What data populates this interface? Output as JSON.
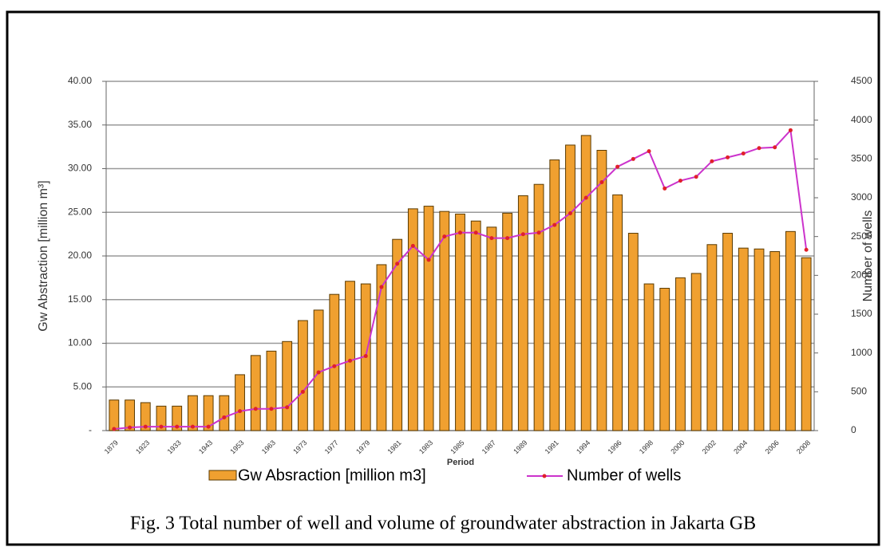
{
  "chart_data": {
    "type": "bar",
    "caption": "Fig. 3    Total number of well and volume of groundwater abstraction in Jakarta GB",
    "y_label": "Gw Abstraction [million m³]",
    "y2_label": "Number of wells",
    "x_label": "Period",
    "categories": [
      "1879",
      null,
      "1923",
      null,
      "1933",
      null,
      "1943",
      null,
      "1953",
      null,
      "1963",
      null,
      "1973",
      null,
      "1977",
      null,
      "1979",
      null,
      "1981",
      null,
      "1983",
      null,
      "1985",
      null,
      "1987",
      null,
      "1989",
      null,
      "1991",
      null,
      "1994",
      null,
      "1996",
      null,
      "1998",
      null,
      "2000",
      null,
      "2002",
      null,
      "2004",
      null,
      "2006",
      null,
      "2008"
    ],
    "series": [
      {
        "name": "Gw Absraction [million m3]",
        "type": "bar",
        "color": "#f0a030",
        "values": [
          3.5,
          3.5,
          3.2,
          2.8,
          2.8,
          4.0,
          4.0,
          4.0,
          6.4,
          8.6,
          9.1,
          10.2,
          12.6,
          13.8,
          15.6,
          17.1,
          16.8,
          19.0,
          21.9,
          25.4,
          25.7,
          25.1,
          24.8,
          24.0,
          23.3,
          24.9,
          26.9,
          28.2,
          31.0,
          32.7,
          33.8,
          32.1,
          27.0,
          22.6,
          16.8,
          16.3,
          17.5,
          18.0,
          21.3,
          22.6,
          20.9,
          20.8,
          20.5,
          22.8,
          19.8
        ]
      },
      {
        "name": "Number of wells",
        "type": "line",
        "axis": "y2",
        "color": "#cc33cc",
        "marker_color": "#e0202a",
        "values": [
          20,
          40,
          50,
          50,
          50,
          50,
          50,
          170,
          250,
          280,
          280,
          300,
          500,
          750,
          830,
          900,
          960,
          1850,
          2150,
          2380,
          2200,
          2500,
          2550,
          2550,
          2480,
          2480,
          2530,
          2550,
          2650,
          2800,
          3000,
          3200,
          3400,
          3500,
          3600,
          3120,
          3220,
          3270,
          3470,
          3520,
          3570,
          3640,
          3650,
          3870,
          2330
        ]
      }
    ],
    "ylim": [
      0,
      40
    ],
    "yticks": [
      {
        "value": 0,
        "label": "-"
      },
      {
        "value": 5,
        "label": "5.00"
      },
      {
        "value": 10,
        "label": "10.00"
      },
      {
        "value": 15,
        "label": "15.00"
      },
      {
        "value": 20,
        "label": "20.00"
      },
      {
        "value": 25,
        "label": "25.00"
      },
      {
        "value": 30,
        "label": "30.00"
      },
      {
        "value": 35,
        "label": "35.00"
      },
      {
        "value": 40,
        "label": "40.00"
      }
    ],
    "y2lim": [
      0,
      4500
    ],
    "y2ticks": [
      0,
      500,
      1000,
      1500,
      2000,
      2500,
      3000,
      3500,
      4000,
      4500
    ],
    "grid": true,
    "legend": "bottom"
  }
}
